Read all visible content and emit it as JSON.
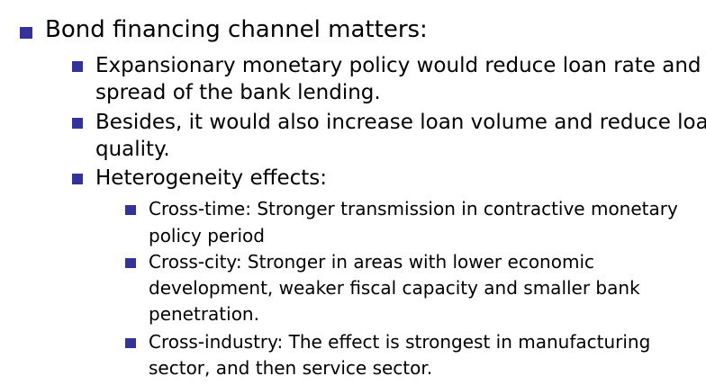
{
  "colors": {
    "bullet": "#33339a",
    "text": "#000000",
    "background": "#ffffff"
  },
  "bullets": {
    "level1": {
      "label": "Bond financing channel matters:"
    },
    "level2": [
      {
        "lines": [
          "Expansionary monetary policy would reduce loan rate and",
          "spread of the bank lending."
        ]
      },
      {
        "lines": [
          "Besides, it would also increase loan volume and reduce loan",
          "quality."
        ]
      },
      {
        "lines": [
          "Heterogeneity effects:"
        ]
      }
    ],
    "level3": [
      {
        "lines": [
          "Cross-time: Stronger transmission in contractive monetary",
          "policy period"
        ]
      },
      {
        "lines": [
          "Cross-city: Stronger in areas with lower economic",
          "development, weaker fiscal capacity and smaller bank",
          "penetration."
        ]
      },
      {
        "lines": [
          "Cross-industry: The effect is strongest in manufacturing",
          "sector, and then service sector."
        ]
      }
    ]
  }
}
